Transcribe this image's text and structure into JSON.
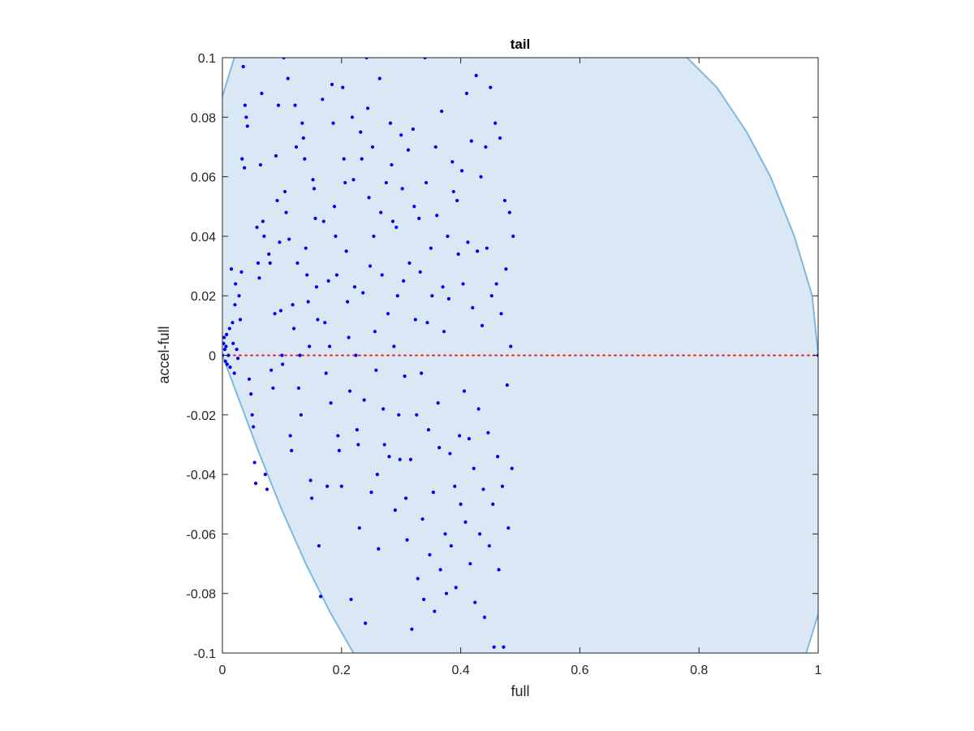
{
  "chart_data": {
    "type": "scatter",
    "title": "tail",
    "xlabel": "full",
    "ylabel": "accel-full",
    "xlim": [
      0,
      1
    ],
    "ylim": [
      -0.1,
      0.1
    ],
    "xticks": [
      0,
      0.2,
      0.4,
      0.6,
      0.8,
      1
    ],
    "xtick_labels": [
      "0",
      "0.2",
      "0.4",
      "0.6",
      "0.8",
      "1"
    ],
    "yticks": [
      0.1,
      0.08,
      0.06,
      0.04,
      0.02,
      0,
      -0.02,
      -0.04,
      -0.06,
      -0.08,
      -0.1
    ],
    "ytick_labels": [
      "0.1",
      "0.08",
      "0.06",
      "0.04",
      "0.02",
      "0",
      "-0.02",
      "-0.04",
      "-0.06",
      "-0.08",
      "-0.1"
    ],
    "grid": false,
    "colors": {
      "region_fill": "#d9e8f4",
      "region_edge": "#7fb8e0",
      "points": "#0000ee",
      "zero_line": "#ee2222",
      "axes": "#262626"
    },
    "feasible_region": {
      "description_of_boundary": "upper-left and lower boundaries follow y = ±0.5·x·(1−x)·k approximately; region is bounded on the right by x=1",
      "left_upper": [
        [
          0,
          0.087
        ],
        [
          0.02,
          0.1
        ]
      ],
      "left_lower": [
        [
          0,
          0
        ],
        [
          0.03,
          -0.016
        ],
        [
          0.06,
          -0.032
        ],
        [
          0.1,
          -0.052
        ],
        [
          0.14,
          -0.07
        ],
        [
          0.18,
          -0.086
        ],
        [
          0.22,
          -0.1
        ]
      ],
      "right_upper": [
        [
          0.78,
          0.1
        ],
        [
          0.83,
          0.09
        ],
        [
          0.88,
          0.075
        ],
        [
          0.92,
          0.06
        ],
        [
          0.96,
          0.04
        ],
        [
          0.99,
          0.02
        ],
        [
          1.0,
          0.0
        ]
      ],
      "right_lower": [
        [
          0.98,
          -0.1
        ],
        [
          1.0,
          -0.087
        ]
      ]
    },
    "zero_line": {
      "y": 0,
      "style": "dotted"
    },
    "series": [
      {
        "points": [
          [
            0.0,
            0.0
          ],
          [
            0.002,
            0.004
          ],
          [
            0.003,
            0.006
          ],
          [
            0.004,
            0.002
          ],
          [
            0.005,
            -0.002
          ],
          [
            0.006,
            0.003
          ],
          [
            0.007,
            0.007
          ],
          [
            0.008,
            -0.003
          ],
          [
            0.01,
            0.0
          ],
          [
            0.012,
            0.009
          ],
          [
            0.013,
            -0.004
          ],
          [
            0.015,
            0.029
          ],
          [
            0.017,
            0.011
          ],
          [
            0.018,
            0.004
          ],
          [
            0.02,
            -0.006
          ],
          [
            0.021,
            0.017
          ],
          [
            0.022,
            0.024
          ],
          [
            0.024,
            0.002
          ],
          [
            0.026,
            -0.001
          ],
          [
            0.028,
            0.02
          ],
          [
            0.03,
            0.012
          ],
          [
            0.032,
            0.028
          ],
          [
            0.033,
            0.066
          ],
          [
            0.035,
            0.097
          ],
          [
            0.037,
            0.063
          ],
          [
            0.038,
            0.084
          ],
          [
            0.04,
            0.08
          ],
          [
            0.042,
            0.077
          ],
          [
            0.045,
            -0.008
          ],
          [
            0.048,
            -0.013
          ],
          [
            0.05,
            -0.02
          ],
          [
            0.052,
            -0.024
          ],
          [
            0.054,
            -0.036
          ],
          [
            0.056,
            -0.043
          ],
          [
            0.058,
            0.043
          ],
          [
            0.06,
            0.031
          ],
          [
            0.062,
            0.026
          ],
          [
            0.064,
            0.064
          ],
          [
            0.066,
            0.088
          ],
          [
            0.068,
            0.045
          ],
          [
            0.07,
            0.04
          ],
          [
            0.072,
            -0.04
          ],
          [
            0.075,
            -0.045
          ],
          [
            0.078,
            0.034
          ],
          [
            0.08,
            0.031
          ],
          [
            0.082,
            -0.005
          ],
          [
            0.085,
            -0.011
          ],
          [
            0.088,
            0.014
          ],
          [
            0.09,
            0.067
          ],
          [
            0.092,
            0.052
          ],
          [
            0.094,
            0.084
          ],
          [
            0.096,
            0.038
          ],
          [
            0.098,
            0.015
          ],
          [
            0.1,
            0.0
          ],
          [
            0.101,
            -0.003
          ],
          [
            0.103,
            0.1
          ],
          [
            0.105,
            0.055
          ],
          [
            0.107,
            0.048
          ],
          [
            0.11,
            0.093
          ],
          [
            0.112,
            0.039
          ],
          [
            0.114,
            -0.027
          ],
          [
            0.116,
            -0.032
          ],
          [
            0.118,
            0.017
          ],
          [
            0.12,
            0.009
          ],
          [
            0.122,
            0.084
          ],
          [
            0.124,
            0.07
          ],
          [
            0.126,
            0.031
          ],
          [
            0.128,
            -0.011
          ],
          [
            0.13,
            0.0
          ],
          [
            0.132,
            -0.02
          ],
          [
            0.134,
            0.078
          ],
          [
            0.136,
            0.073
          ],
          [
            0.138,
            0.066
          ],
          [
            0.14,
            0.036
          ],
          [
            0.142,
            0.027
          ],
          [
            0.144,
            0.018
          ],
          [
            0.146,
            0.003
          ],
          [
            0.148,
            -0.042
          ],
          [
            0.15,
            -0.048
          ],
          [
            0.152,
            0.059
          ],
          [
            0.154,
            0.056
          ],
          [
            0.156,
            0.046
          ],
          [
            0.158,
            0.023
          ],
          [
            0.16,
            0.012
          ],
          [
            0.162,
            -0.064
          ],
          [
            0.165,
            -0.081
          ],
          [
            0.168,
            0.086
          ],
          [
            0.17,
            0.045
          ],
          [
            0.172,
            0.011
          ],
          [
            0.174,
            -0.006
          ],
          [
            0.176,
            -0.044
          ],
          [
            0.178,
            0.025
          ],
          [
            0.18,
            0.003
          ],
          [
            0.182,
            -0.016
          ],
          [
            0.184,
            0.091
          ],
          [
            0.186,
            0.078
          ],
          [
            0.188,
            0.05
          ],
          [
            0.19,
            0.04
          ],
          [
            0.192,
            0.027
          ],
          [
            0.194,
            -0.027
          ],
          [
            0.196,
            -0.032
          ],
          [
            0.2,
            -0.044
          ],
          [
            0.202,
            0.09
          ],
          [
            0.204,
            0.066
          ],
          [
            0.206,
            0.058
          ],
          [
            0.208,
            0.035
          ],
          [
            0.21,
            0.018
          ],
          [
            0.212,
            0.006
          ],
          [
            0.214,
            -0.012
          ],
          [
            0.216,
            -0.082
          ],
          [
            0.218,
            0.08
          ],
          [
            0.22,
            0.059
          ],
          [
            0.222,
            0.023
          ],
          [
            0.224,
            0.0
          ],
          [
            0.226,
            -0.025
          ],
          [
            0.228,
            -0.03
          ],
          [
            0.23,
            -0.058
          ],
          [
            0.232,
            0.075
          ],
          [
            0.234,
            0.066
          ],
          [
            0.236,
            0.021
          ],
          [
            0.238,
            -0.015
          ],
          [
            0.24,
            -0.09
          ],
          [
            0.242,
            0.1
          ],
          [
            0.244,
            0.083
          ],
          [
            0.246,
            0.053
          ],
          [
            0.248,
            0.03
          ],
          [
            0.25,
            -0.046
          ],
          [
            0.252,
            0.07
          ],
          [
            0.254,
            0.04
          ],
          [
            0.256,
            0.008
          ],
          [
            0.258,
            -0.005
          ],
          [
            0.26,
            -0.04
          ],
          [
            0.262,
            -0.065
          ],
          [
            0.264,
            0.093
          ],
          [
            0.266,
            0.048
          ],
          [
            0.268,
            0.027
          ],
          [
            0.27,
            -0.018
          ],
          [
            0.272,
            -0.03
          ],
          [
            0.275,
            0.058
          ],
          [
            0.278,
            0.014
          ],
          [
            0.28,
            -0.034
          ],
          [
            0.282,
            0.078
          ],
          [
            0.284,
            0.064
          ],
          [
            0.286,
            0.045
          ],
          [
            0.288,
            0.003
          ],
          [
            0.29,
            -0.052
          ],
          [
            0.292,
            0.043
          ],
          [
            0.294,
            0.02
          ],
          [
            0.296,
            -0.02
          ],
          [
            0.298,
            -0.035
          ],
          [
            0.3,
            0.074
          ],
          [
            0.302,
            0.056
          ],
          [
            0.304,
            0.025
          ],
          [
            0.306,
            -0.007
          ],
          [
            0.308,
            -0.048
          ],
          [
            0.31,
            -0.062
          ],
          [
            0.312,
            0.069
          ],
          [
            0.314,
            0.031
          ],
          [
            0.316,
            -0.035
          ],
          [
            0.318,
            -0.092
          ],
          [
            0.32,
            0.076
          ],
          [
            0.322,
            0.05
          ],
          [
            0.324,
            0.012
          ],
          [
            0.326,
            -0.02
          ],
          [
            0.328,
            -0.075
          ],
          [
            0.33,
            0.046
          ],
          [
            0.332,
            0.028
          ],
          [
            0.334,
            -0.006
          ],
          [
            0.336,
            -0.055
          ],
          [
            0.338,
            -0.082
          ],
          [
            0.34,
            0.1
          ],
          [
            0.342,
            0.058
          ],
          [
            0.344,
            0.011
          ],
          [
            0.346,
            -0.025
          ],
          [
            0.348,
            -0.067
          ],
          [
            0.35,
            0.036
          ],
          [
            0.352,
            0.02
          ],
          [
            0.354,
            -0.046
          ],
          [
            0.356,
            -0.086
          ],
          [
            0.358,
            0.07
          ],
          [
            0.36,
            0.047
          ],
          [
            0.362,
            -0.016
          ],
          [
            0.364,
            -0.031
          ],
          [
            0.366,
            -0.072
          ],
          [
            0.368,
            0.082
          ],
          [
            0.37,
            0.023
          ],
          [
            0.372,
            0.008
          ],
          [
            0.374,
            -0.06
          ],
          [
            0.376,
            -0.08
          ],
          [
            0.378,
            0.04
          ],
          [
            0.38,
            0.019
          ],
          [
            0.382,
            -0.033
          ],
          [
            0.384,
            -0.064
          ],
          [
            0.386,
            0.065
          ],
          [
            0.388,
            0.055
          ],
          [
            0.39,
            -0.044
          ],
          [
            0.392,
            -0.078
          ],
          [
            0.394,
            0.052
          ],
          [
            0.396,
            0.034
          ],
          [
            0.398,
            -0.027
          ],
          [
            0.4,
            -0.05
          ],
          [
            0.402,
            0.062
          ],
          [
            0.404,
            0.024
          ],
          [
            0.406,
            -0.012
          ],
          [
            0.408,
            -0.056
          ],
          [
            0.41,
            0.088
          ],
          [
            0.412,
            0.038
          ],
          [
            0.414,
            -0.028
          ],
          [
            0.416,
            -0.07
          ],
          [
            0.418,
            0.072
          ],
          [
            0.42,
            0.016
          ],
          [
            0.422,
            -0.038
          ],
          [
            0.424,
            -0.083
          ],
          [
            0.426,
            0.094
          ],
          [
            0.428,
            0.035
          ],
          [
            0.43,
            -0.018
          ],
          [
            0.432,
            -0.06
          ],
          [
            0.434,
            0.06
          ],
          [
            0.436,
            0.01
          ],
          [
            0.438,
            -0.045
          ],
          [
            0.44,
            -0.088
          ],
          [
            0.442,
            0.07
          ],
          [
            0.444,
            0.036
          ],
          [
            0.446,
            -0.026
          ],
          [
            0.448,
            -0.064
          ],
          [
            0.45,
            0.09
          ],
          [
            0.452,
            0.02
          ],
          [
            0.454,
            -0.05
          ],
          [
            0.456,
            -0.098
          ],
          [
            0.458,
            0.078
          ],
          [
            0.46,
            0.024
          ],
          [
            0.462,
            -0.034
          ],
          [
            0.464,
            -0.072
          ],
          [
            0.466,
            0.073
          ],
          [
            0.468,
            0.014
          ],
          [
            0.47,
            -0.044
          ],
          [
            0.472,
            -0.098
          ],
          [
            0.474,
            0.052
          ],
          [
            0.476,
            0.029
          ],
          [
            0.478,
            -0.01
          ],
          [
            0.48,
            -0.058
          ],
          [
            0.482,
            0.048
          ],
          [
            0.484,
            0.003
          ],
          [
            0.486,
            -0.038
          ],
          [
            0.488,
            0.04
          ],
          [
            1.0,
            0.0
          ]
        ]
      }
    ]
  }
}
